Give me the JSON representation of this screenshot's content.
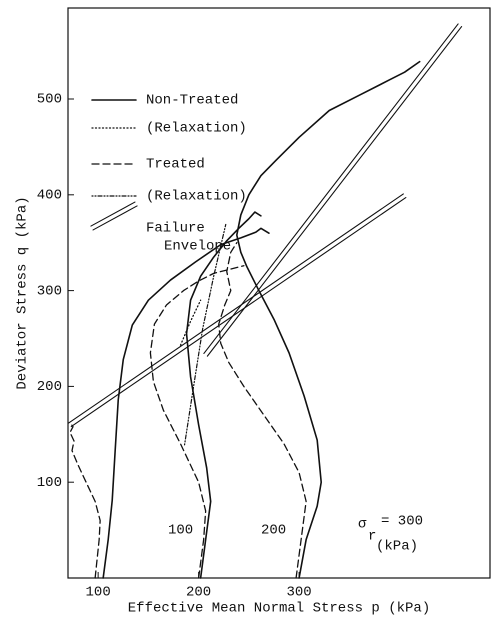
{
  "chart_data": {
    "type": "line",
    "xlabel": "Effective Mean Normal Stress p (kPa)",
    "ylabel": "Deviator Stress q (kPa)",
    "xlim": [
      70,
      490
    ],
    "ylim": [
      0,
      595
    ],
    "xticks": [
      100,
      200,
      300
    ],
    "yticks": [
      100,
      200,
      300,
      400,
      500
    ],
    "legend": [
      {
        "label": [
          "Non-Treated"
        ],
        "style": "solid"
      },
      {
        "label": [
          "(Relaxation)"
        ],
        "style": "dotted"
      },
      {
        "label": [
          "Treated"
        ],
        "style": "dashed"
      },
      {
        "label": [
          "(Relaxation)"
        ],
        "style": "dashdot"
      },
      {
        "label": [
          "Failure",
          "Envelope"
        ],
        "style": "double"
      }
    ],
    "series": [
      {
        "style": "double",
        "x": [
          207,
          460
        ],
        "y": [
          233,
          577
        ]
      },
      {
        "style": "double",
        "x": [
          72,
          405
        ],
        "y": [
          160,
          399
        ]
      },
      {
        "style": "solid",
        "x": [
          105,
          110,
          114,
          117,
          120,
          125,
          134,
          150,
          172,
          197,
          222,
          242,
          257,
          262,
          270
        ],
        "y": [
          0,
          40,
          81,
          134,
          186,
          228,
          264,
          290,
          311,
          330,
          348,
          355,
          361,
          365,
          360
        ]
      },
      {
        "style": "solid",
        "x": [
          202,
          207,
          212,
          208,
          200,
          192,
          188,
          192,
          202,
          215,
          228,
          240,
          250,
          256,
          262
        ],
        "y": [
          0,
          40,
          80,
          115,
          160,
          210,
          255,
          290,
          315,
          335,
          352,
          365,
          375,
          382,
          378
        ]
      },
      {
        "style": "solid",
        "x": [
          300,
          307,
          318,
          322,
          318,
          305,
          290,
          275,
          260,
          248,
          242,
          238,
          242,
          250,
          262,
          277,
          300,
          330,
          360,
          390,
          405,
          420
        ],
        "y": [
          0,
          40,
          75,
          100,
          144,
          190,
          235,
          270,
          300,
          325,
          340,
          358,
          379,
          400,
          420,
          436,
          460,
          488,
          504,
          520,
          528,
          539
        ]
      },
      {
        "style": "dotted",
        "x": [
          182,
          192,
          202
        ],
        "y": [
          243,
          268,
          290
        ]
      },
      {
        "style": "dashed",
        "x": [
          97,
          101,
          102,
          97,
          88,
          80,
          74,
          76,
          72,
          75,
          72
        ],
        "y": [
          0,
          40,
          60,
          80,
          100,
          118,
          133,
          143,
          152,
          158,
          162
        ]
      },
      {
        "style": "dashed",
        "x": [
          200,
          205,
          207,
          200,
          182,
          165,
          155,
          152,
          156,
          168,
          185,
          200,
          215,
          230,
          245
        ],
        "y": [
          0,
          40,
          70,
          100,
          140,
          175,
          205,
          235,
          265,
          285,
          300,
          310,
          318,
          322,
          326
        ]
      },
      {
        "style": "dashed",
        "x": [
          297,
          302,
          307,
          300,
          285,
          265,
          245,
          230,
          222,
          220,
          226,
          232,
          228,
          232,
          238
        ],
        "y": [
          0,
          40,
          80,
          110,
          140,
          170,
          200,
          225,
          245,
          265,
          285,
          300,
          320,
          340,
          350
        ]
      },
      {
        "style": "dashdot",
        "x": [
          186,
          195,
          204,
          215,
          227
        ],
        "y": [
          139,
          200,
          260,
          315,
          369
        ]
      }
    ],
    "annotations": [
      "100",
      "200",
      "σ",
      "r",
      "= 300",
      "(kPa)"
    ]
  }
}
